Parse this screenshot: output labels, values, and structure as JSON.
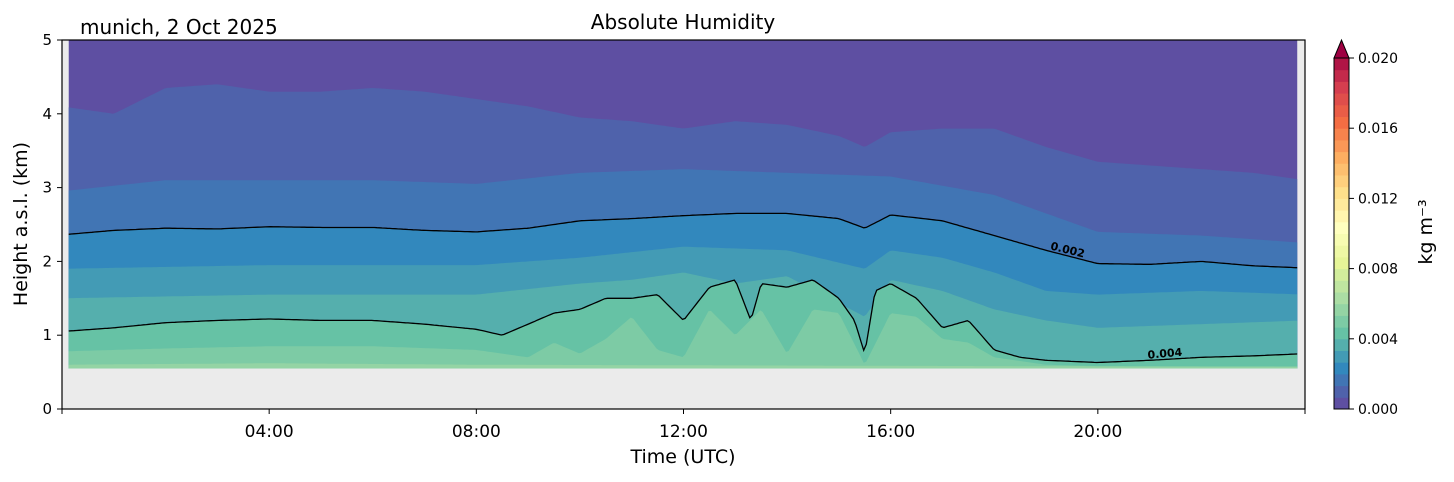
{
  "chart_data": {
    "type": "heatmap",
    "subtype": "filled-contour",
    "title": "Absolute Humidity",
    "subtitle": "munich, 2 Oct 2025",
    "xlabel": "Time (UTC)",
    "ylabel": "Height a.s.l. (km)",
    "xlim_hours": [
      0,
      24
    ],
    "ylim": [
      0,
      5
    ],
    "xticks": [
      {
        "h": 4,
        "label": "04:00"
      },
      {
        "h": 8,
        "label": "08:00"
      },
      {
        "h": 12,
        "label": "12:00"
      },
      {
        "h": 16,
        "label": "16:00"
      },
      {
        "h": 20,
        "label": "20:00"
      }
    ],
    "yticks": [
      "0",
      "1",
      "2",
      "3",
      "4",
      "5"
    ],
    "data_time_range_hours": [
      0.13,
      23.85
    ],
    "lowest_height_km": 0.55,
    "background_color": "#ebebeb",
    "colorbar": {
      "label": "kg m⁻³",
      "min": 0,
      "max": 0.02,
      "levels": 30,
      "extend": "max",
      "ticks": [
        "0.000",
        "0.004",
        "0.008",
        "0.012",
        "0.016",
        "0.020"
      ],
      "colormap": "Spectral_r",
      "colormap_anchors": [
        "#5e4fa2",
        "#3288bd",
        "#66c2a5",
        "#abdda4",
        "#e6f598",
        "#ffffbf",
        "#fee08b",
        "#fdae61",
        "#f46d43",
        "#d53e4f",
        "#9e0142"
      ]
    },
    "level_boundaries": [
      {
        "level": 0.000667,
        "hours": [
          0,
          1,
          2,
          3,
          4,
          5,
          6,
          7,
          8,
          9,
          10,
          11,
          12,
          13,
          14,
          15,
          15.5,
          16,
          17,
          18,
          19,
          20,
          21,
          22,
          23,
          24
        ],
        "height_km": [
          4.1,
          4.0,
          4.35,
          4.4,
          4.3,
          4.3,
          4.35,
          4.3,
          4.2,
          4.1,
          3.95,
          3.9,
          3.8,
          3.9,
          3.85,
          3.7,
          3.55,
          3.75,
          3.8,
          3.8,
          3.55,
          3.35,
          3.3,
          3.25,
          3.2,
          3.1
        ]
      },
      {
        "level": 0.001333,
        "hours": [
          0,
          2,
          4,
          6,
          8,
          10,
          12,
          14,
          16,
          18,
          19,
          20,
          22,
          24
        ],
        "height_km": [
          2.95,
          3.1,
          3.1,
          3.1,
          3.05,
          3.2,
          3.25,
          3.2,
          3.15,
          2.9,
          2.65,
          2.4,
          2.35,
          2.25
        ]
      },
      {
        "level": 0.002,
        "contour_line": true,
        "label": "0.002",
        "hours": [
          0,
          1,
          2,
          3,
          4,
          5,
          6,
          7,
          8,
          9,
          10,
          11,
          12,
          13,
          14,
          15,
          15.5,
          16,
          17,
          18,
          19,
          20,
          21,
          22,
          23,
          24
        ],
        "height_km": [
          2.36,
          2.42,
          2.45,
          2.44,
          2.47,
          2.46,
          2.46,
          2.42,
          2.4,
          2.45,
          2.55,
          2.58,
          2.62,
          2.65,
          2.65,
          2.58,
          2.45,
          2.63,
          2.55,
          2.35,
          2.15,
          1.97,
          1.96,
          2.0,
          1.94,
          1.91
        ]
      },
      {
        "level": 0.002667,
        "hours": [
          0,
          4,
          8,
          10,
          12,
          14,
          15.5,
          16,
          17,
          18,
          19,
          20,
          22,
          24
        ],
        "height_km": [
          1.9,
          1.95,
          1.95,
          2.05,
          2.2,
          2.15,
          1.9,
          2.15,
          2.05,
          1.85,
          1.6,
          1.55,
          1.6,
          1.55
        ]
      },
      {
        "level": 0.003333,
        "hours": [
          0,
          4,
          8,
          10,
          11,
          12,
          13,
          14,
          15.5,
          16,
          17,
          18,
          19,
          20,
          22,
          24
        ],
        "height_km": [
          1.5,
          1.55,
          1.55,
          1.7,
          1.75,
          1.85,
          1.7,
          1.8,
          1.25,
          1.75,
          1.6,
          1.35,
          1.2,
          1.1,
          1.15,
          1.2
        ]
      },
      {
        "level": 0.004,
        "contour_line": true,
        "label": "0.004",
        "hours": [
          0,
          1,
          2,
          3,
          4,
          5,
          6,
          7,
          8,
          8.5,
          9,
          9.5,
          10,
          10.5,
          11,
          11.5,
          12,
          12.5,
          13,
          13.3,
          13.5,
          14,
          14.5,
          15,
          15.3,
          15.5,
          15.7,
          16,
          16.5,
          17,
          17.5,
          18,
          18.5,
          19,
          20,
          21,
          22,
          23,
          24
        ],
        "height_km": [
          1.05,
          1.1,
          1.17,
          1.2,
          1.22,
          1.2,
          1.2,
          1.15,
          1.08,
          1.0,
          1.15,
          1.3,
          1.35,
          1.5,
          1.5,
          1.55,
          1.2,
          1.65,
          1.75,
          1.2,
          1.7,
          1.65,
          1.75,
          1.5,
          1.2,
          0.75,
          1.6,
          1.7,
          1.5,
          1.1,
          1.2,
          0.8,
          0.7,
          0.66,
          0.63,
          0.66,
          0.7,
          0.72,
          0.75
        ]
      },
      {
        "level": 0.004667,
        "hours": [
          0,
          2,
          4,
          6,
          8,
          9,
          9.5,
          10,
          10.5,
          11,
          11.5,
          12,
          12.5,
          13,
          13.5,
          14,
          14.5,
          15,
          15.5,
          16,
          16.5,
          17,
          17.5,
          18,
          19,
          20,
          24
        ],
        "height_km": [
          0.78,
          0.82,
          0.85,
          0.85,
          0.8,
          0.7,
          0.9,
          0.75,
          0.95,
          1.25,
          0.8,
          0.7,
          1.35,
          1.0,
          1.35,
          0.75,
          1.35,
          1.3,
          0.6,
          1.3,
          1.25,
          0.95,
          0.9,
          0.7,
          0.6,
          0.58,
          0.58
        ]
      },
      {
        "level": 0.005333,
        "hours": [
          0,
          4,
          8,
          24
        ],
        "height_km": [
          0.6,
          0.62,
          0.6,
          0.57
        ]
      }
    ]
  }
}
